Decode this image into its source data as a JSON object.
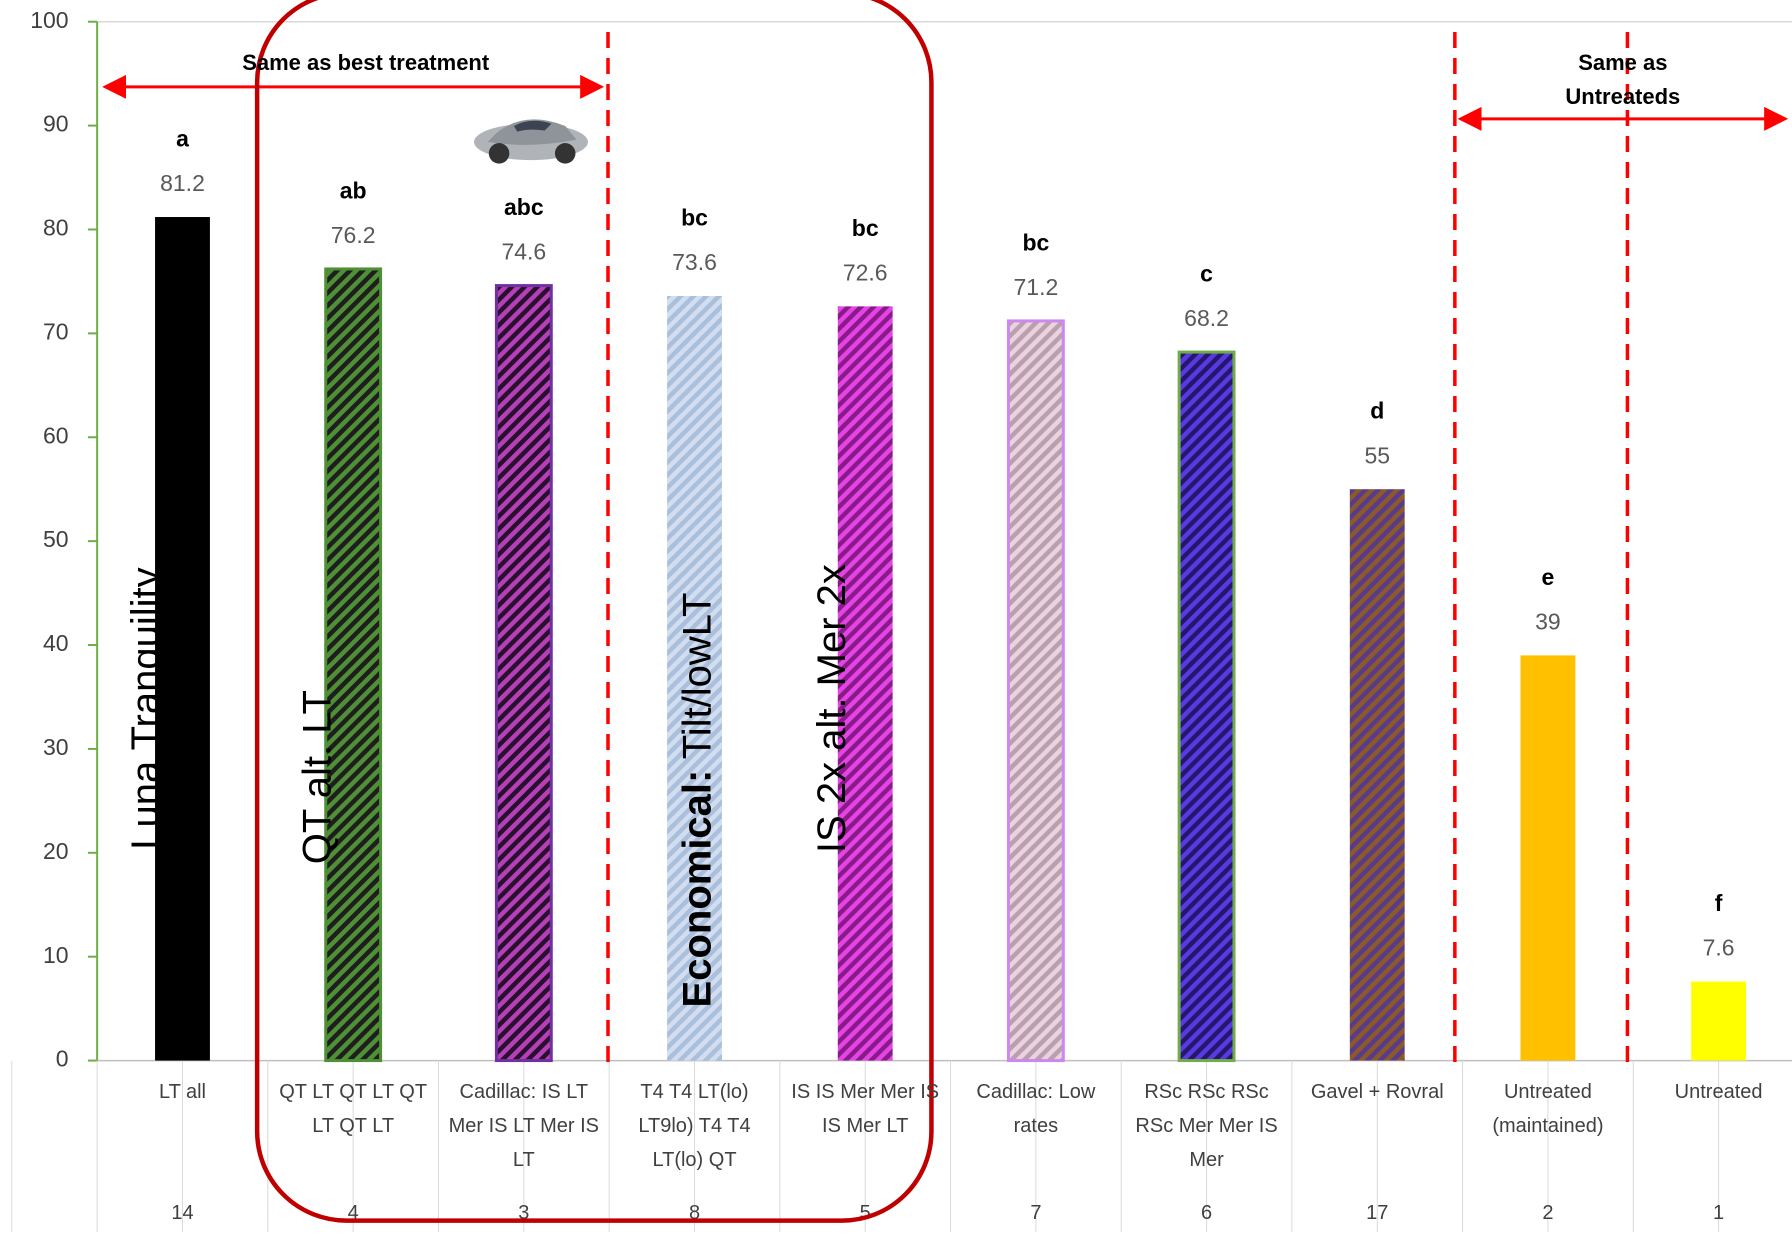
{
  "chart_data": {
    "type": "bar",
    "categories": [
      "LT all",
      "QT LT QT LT QT LT QT LT",
      "Cadillac: IS LT Mer IS LT Mer IS LT",
      "T4 T4 LT(lo) LT9lo) T4 T4 LT(lo) QT",
      "IS IS Mer Mer IS IS Mer LT",
      "Cadillac: Low rates",
      "RSc RSc RSc RSc Mer Mer IS Mer",
      "Gavel + Rovral",
      "Untreated (maintained)",
      "Untreated"
    ],
    "treatment_numbers": [
      "14",
      "4",
      "3",
      "8",
      "5",
      "7",
      "6",
      "17",
      "2",
      "1"
    ],
    "values": [
      81.2,
      76.2,
      74.6,
      73.6,
      72.6,
      71.2,
      68.2,
      55,
      39,
      7.6
    ],
    "significance_letters": [
      "a",
      "ab",
      "abc",
      "bc",
      "bc",
      "bc",
      "c",
      "d",
      "e",
      "f"
    ],
    "bar_styles": [
      {
        "fill": "#000000"
      },
      {
        "fill": "#1e1e1e",
        "hatch": "#4f8f35",
        "outline": "#4f8f35"
      },
      {
        "fill": "#2a1030",
        "hatch": "#b540b5",
        "outline": "#7030a0"
      },
      {
        "fill": "#a9bfdc",
        "hatch": "#d2deef"
      },
      {
        "fill": "#8a1a8a",
        "hatch": "#e444e4"
      },
      {
        "fill": "#b8a0b0",
        "hatch": "#ecd2dc",
        "outline": "#cc88ee"
      },
      {
        "fill": "#24186e",
        "hatch": "#5a3ae0",
        "outline": "#70ad47"
      },
      {
        "fill": "#5a3a8a",
        "hatch": "#8a5a2a"
      },
      {
        "fill": "#ffc000"
      },
      {
        "fill": "#ffff00"
      }
    ],
    "ylim": [
      0,
      100
    ],
    "yticks": [
      0,
      10,
      20,
      30,
      40,
      50,
      60,
      70,
      80,
      90,
      100
    ],
    "annotations": {
      "best": "Same as best treatment",
      "untreated": "Same as Untreateds",
      "vertical": [
        "Luna Tranquility",
        "QT alt. LT",
        "IS 2x alt. Mer 2x"
      ],
      "economical_bold": "Economical:",
      "economical_rest": "Tilt/lowLT"
    }
  }
}
